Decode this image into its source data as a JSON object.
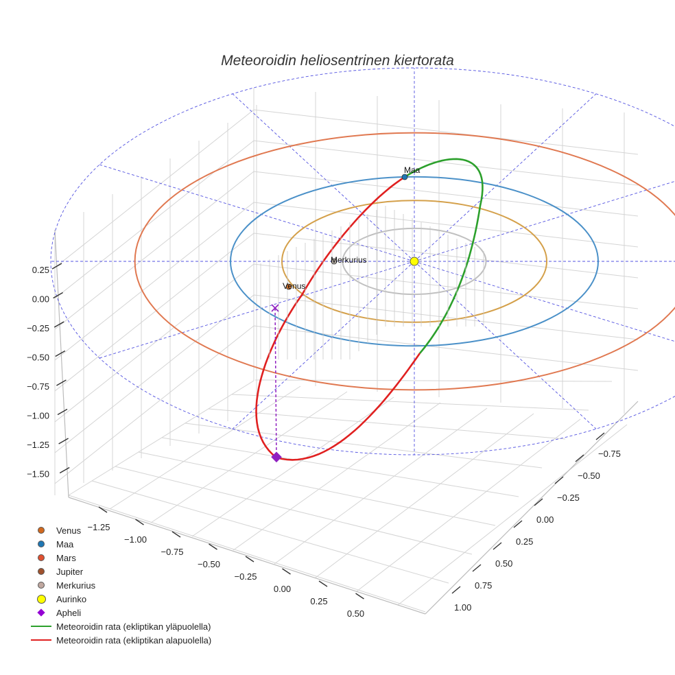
{
  "chart_data": {
    "type": "line",
    "title": "Meteoroidin heliosentrinen kiertorata",
    "axes": {
      "x_ticks": [
        "−1.25",
        "−1.00",
        "−0.75",
        "−0.50",
        "−0.25",
        "0.00",
        "0.25",
        "0.50"
      ],
      "y_ticks": [
        "−0.75",
        "−0.50",
        "−0.25",
        "0.00",
        "0.25",
        "0.50",
        "0.75",
        "1.00"
      ],
      "z_ticks": [
        "0.25",
        "0.00",
        "−0.25",
        "−0.50",
        "−0.75",
        "−1.00",
        "−1.25",
        "−1.50"
      ],
      "grid": true
    },
    "orbits": [
      {
        "name": "Merkurius",
        "radius_au": 0.39,
        "color": "#c0c0c0"
      },
      {
        "name": "Venus",
        "radius_au": 0.72,
        "color": "#d4a04a"
      },
      {
        "name": "Maa",
        "radius_au": 1.0,
        "color": "#4a90c8"
      },
      {
        "name": "Mars",
        "radius_au": 1.52,
        "color": "#e07850"
      }
    ],
    "bodies": [
      {
        "name": "Merkurius",
        "label": "Merkurius",
        "color": "#b0a8a0"
      },
      {
        "name": "Venus",
        "label": "Venus",
        "color": "#c87030"
      },
      {
        "name": "Maa",
        "label": "Maa",
        "color": "#1f77b4"
      },
      {
        "name": "Aurinko",
        "label": "",
        "color": "#ffff00"
      }
    ],
    "aphelion": {
      "name": "Apheli",
      "color": "#9020c0",
      "z_au": -1.4
    },
    "series": [
      {
        "name": "Meteoroidin rata (ekliptikan yläpuolella)",
        "color": "#2ca02c"
      },
      {
        "name": "Meteoroidin rata (ekliptikan alapuolella)",
        "color": "#e02020"
      }
    ],
    "legend": {
      "position": "bottom-left",
      "items": [
        {
          "label": "Venus",
          "kind": "dot",
          "color": "#d2691e"
        },
        {
          "label": "Maa",
          "kind": "dot",
          "color": "#1f77b4"
        },
        {
          "label": "Mars",
          "kind": "dot",
          "color": "#e05030"
        },
        {
          "label": "Jupiter",
          "kind": "dot",
          "color": "#a0522d"
        },
        {
          "label": "Merkurius",
          "kind": "dot",
          "color": "#c0a8a0"
        },
        {
          "label": "Aurinko",
          "kind": "bigdot",
          "color": "#ffff00"
        },
        {
          "label": "Apheli",
          "kind": "diamond",
          "color": "#9400d3"
        },
        {
          "label": "Meteoroidin rata (ekliptikan yläpuolella)",
          "kind": "line",
          "color": "#2ca02c"
        },
        {
          "label": "Meteoroidin rata (ekliptikan alapuolella)",
          "kind": "line",
          "color": "#e02020"
        }
      ]
    }
  }
}
